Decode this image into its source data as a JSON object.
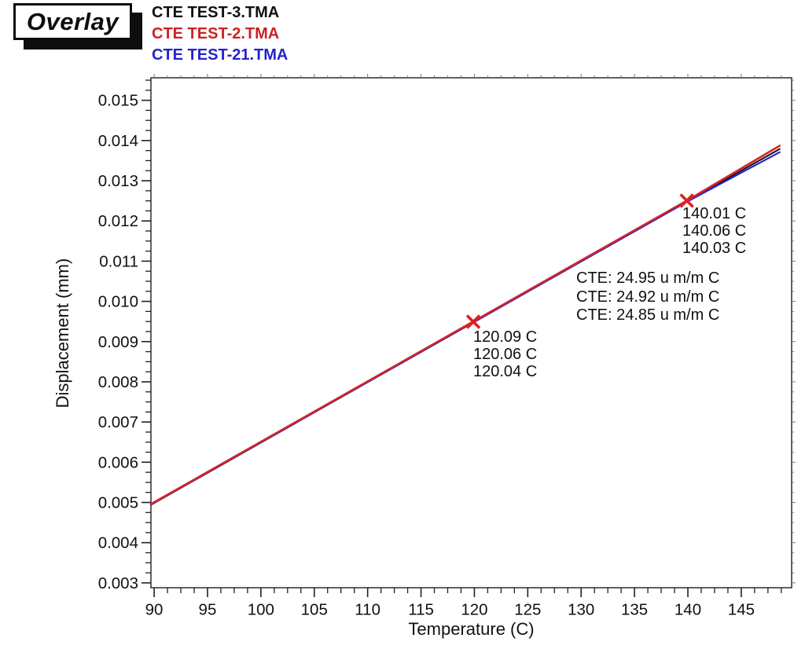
{
  "header": {
    "overlay_label": "Overlay",
    "legend": [
      {
        "label": "CTE TEST-3.TMA",
        "color": "#111111"
      },
      {
        "label": "CTE TEST-2.TMA",
        "color": "#cc2222"
      },
      {
        "label": "CTE TEST-21.TMA",
        "color": "#2424c8"
      }
    ]
  },
  "chart_data": {
    "type": "line",
    "title": "Overlay",
    "xlabel": "Temperature (C)",
    "ylabel": "Displacement (mm)",
    "xlim": [
      89.7,
      149.72
    ],
    "ylim": [
      0.00288,
      0.01556
    ],
    "x_major_ticks": [
      90,
      95,
      100,
      105,
      110,
      115,
      120,
      125,
      130,
      135,
      140,
      145
    ],
    "x_minor_step": 1.25,
    "y_major_ticks": [
      0.003,
      0.004,
      0.005,
      0.006,
      0.007,
      0.008,
      0.009,
      0.01,
      0.011,
      0.012,
      0.013,
      0.014,
      0.015
    ],
    "y_minor_step": 0.00025,
    "grid": false,
    "legend_position": "top-left-outside",
    "series": [
      {
        "name": "CTE TEST-3.TMA",
        "color": "#111111",
        "width": 2.0,
        "points": [
          [
            89.7,
            0.00494
          ],
          [
            140.0,
            0.0125
          ],
          [
            148.6,
            0.01379
          ]
        ]
      },
      {
        "name": "CTE TEST-21.TMA",
        "color": "#2424c8",
        "width": 2.2,
        "points": [
          [
            89.7,
            0.00495
          ],
          [
            140.0,
            0.01249
          ],
          [
            148.6,
            0.01371
          ]
        ]
      },
      {
        "name": "CTE TEST-2.TMA",
        "color": "#d42525",
        "width": 2.6,
        "points": [
          [
            89.7,
            0.00496
          ],
          [
            140.0,
            0.01252
          ],
          [
            148.6,
            0.01387
          ]
        ]
      }
    ],
    "markers": {
      "shape": "x",
      "color": "#e01f21",
      "points": [
        [
          119.9,
          0.009493
        ],
        [
          139.9,
          0.012505
        ]
      ]
    },
    "annotations": [
      {
        "name": "upper-temperatures",
        "lines": [
          "140.01 C",
          "140.06 C",
          "140.03 C"
        ]
      },
      {
        "name": "cte-values",
        "lines": [
          "CTE: 24.95 u m/m C",
          "CTE: 24.92 u m/m C",
          "CTE: 24.85 u m/m C"
        ]
      },
      {
        "name": "lower-temperatures",
        "lines": [
          "120.09 C",
          "120.06 C",
          "120.04 C"
        ]
      }
    ]
  }
}
